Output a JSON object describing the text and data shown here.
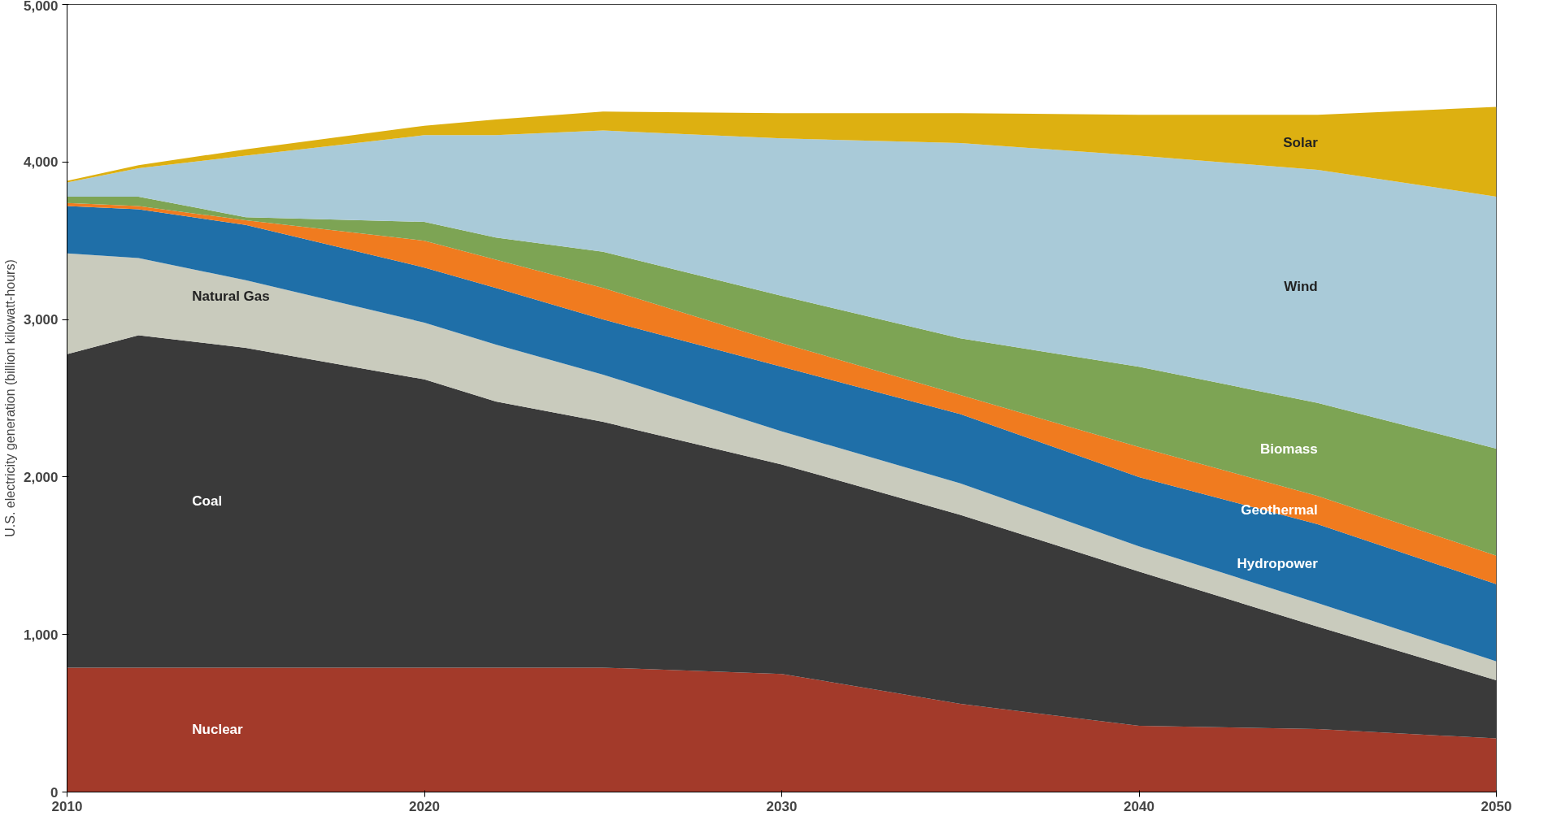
{
  "chart_data": {
    "type": "area",
    "stacked": true,
    "ylabel": "U.S. electricity generation (billion kilowatt-hours)",
    "x": [
      2010,
      2012,
      2015,
      2020,
      2022,
      2025,
      2030,
      2035,
      2040,
      2045,
      2050
    ],
    "xlim": [
      2010,
      2050
    ],
    "xticks": [
      2010,
      2020,
      2030,
      2040,
      2050
    ],
    "ylim": [
      0,
      5000
    ],
    "yticks": [
      {
        "value": 0,
        "label": "0"
      },
      {
        "value": 1000,
        "label": "1,000"
      },
      {
        "value": 2000,
        "label": "2,000"
      },
      {
        "value": 3000,
        "label": "3,000"
      },
      {
        "value": 4000,
        "label": "4,000"
      },
      {
        "value": 5000,
        "label": "5,000"
      }
    ],
    "grid": false,
    "legend": false,
    "series": [
      {
        "name": "Nuclear",
        "color": "#a33a2a",
        "values": [
          790,
          790,
          790,
          790,
          790,
          790,
          750,
          560,
          420,
          400,
          340
        ]
      },
      {
        "name": "Coal",
        "color": "#3a3a3a",
        "values": [
          1990,
          2110,
          2030,
          1830,
          1690,
          1560,
          1330,
          1200,
          980,
          650,
          370
        ]
      },
      {
        "name": "Natural Gas",
        "color": "#c9cbbd",
        "values": [
          640,
          490,
          430,
          360,
          360,
          300,
          210,
          200,
          160,
          150,
          120
        ]
      },
      {
        "name": "Hydropower",
        "color": "#1f6fa8",
        "values": [
          300,
          310,
          350,
          350,
          360,
          350,
          410,
          440,
          440,
          500,
          490
        ]
      },
      {
        "name": "Geothermal",
        "color": "#f07b1f",
        "values": [
          20,
          20,
          30,
          170,
          180,
          200,
          150,
          120,
          190,
          180,
          180
        ]
      },
      {
        "name": "Biomass",
        "color": "#7da454",
        "values": [
          40,
          60,
          20,
          120,
          140,
          230,
          300,
          360,
          510,
          590,
          680
        ]
      },
      {
        "name": "Wind",
        "color": "#a9cad8",
        "values": [
          90,
          180,
          390,
          550,
          650,
          770,
          1000,
          1240,
          1340,
          1480,
          1600
        ]
      },
      {
        "name": "Solar",
        "color": "#ddb011",
        "values": [
          10,
          20,
          40,
          60,
          100,
          120,
          160,
          190,
          260,
          350,
          570
        ]
      }
    ]
  }
}
